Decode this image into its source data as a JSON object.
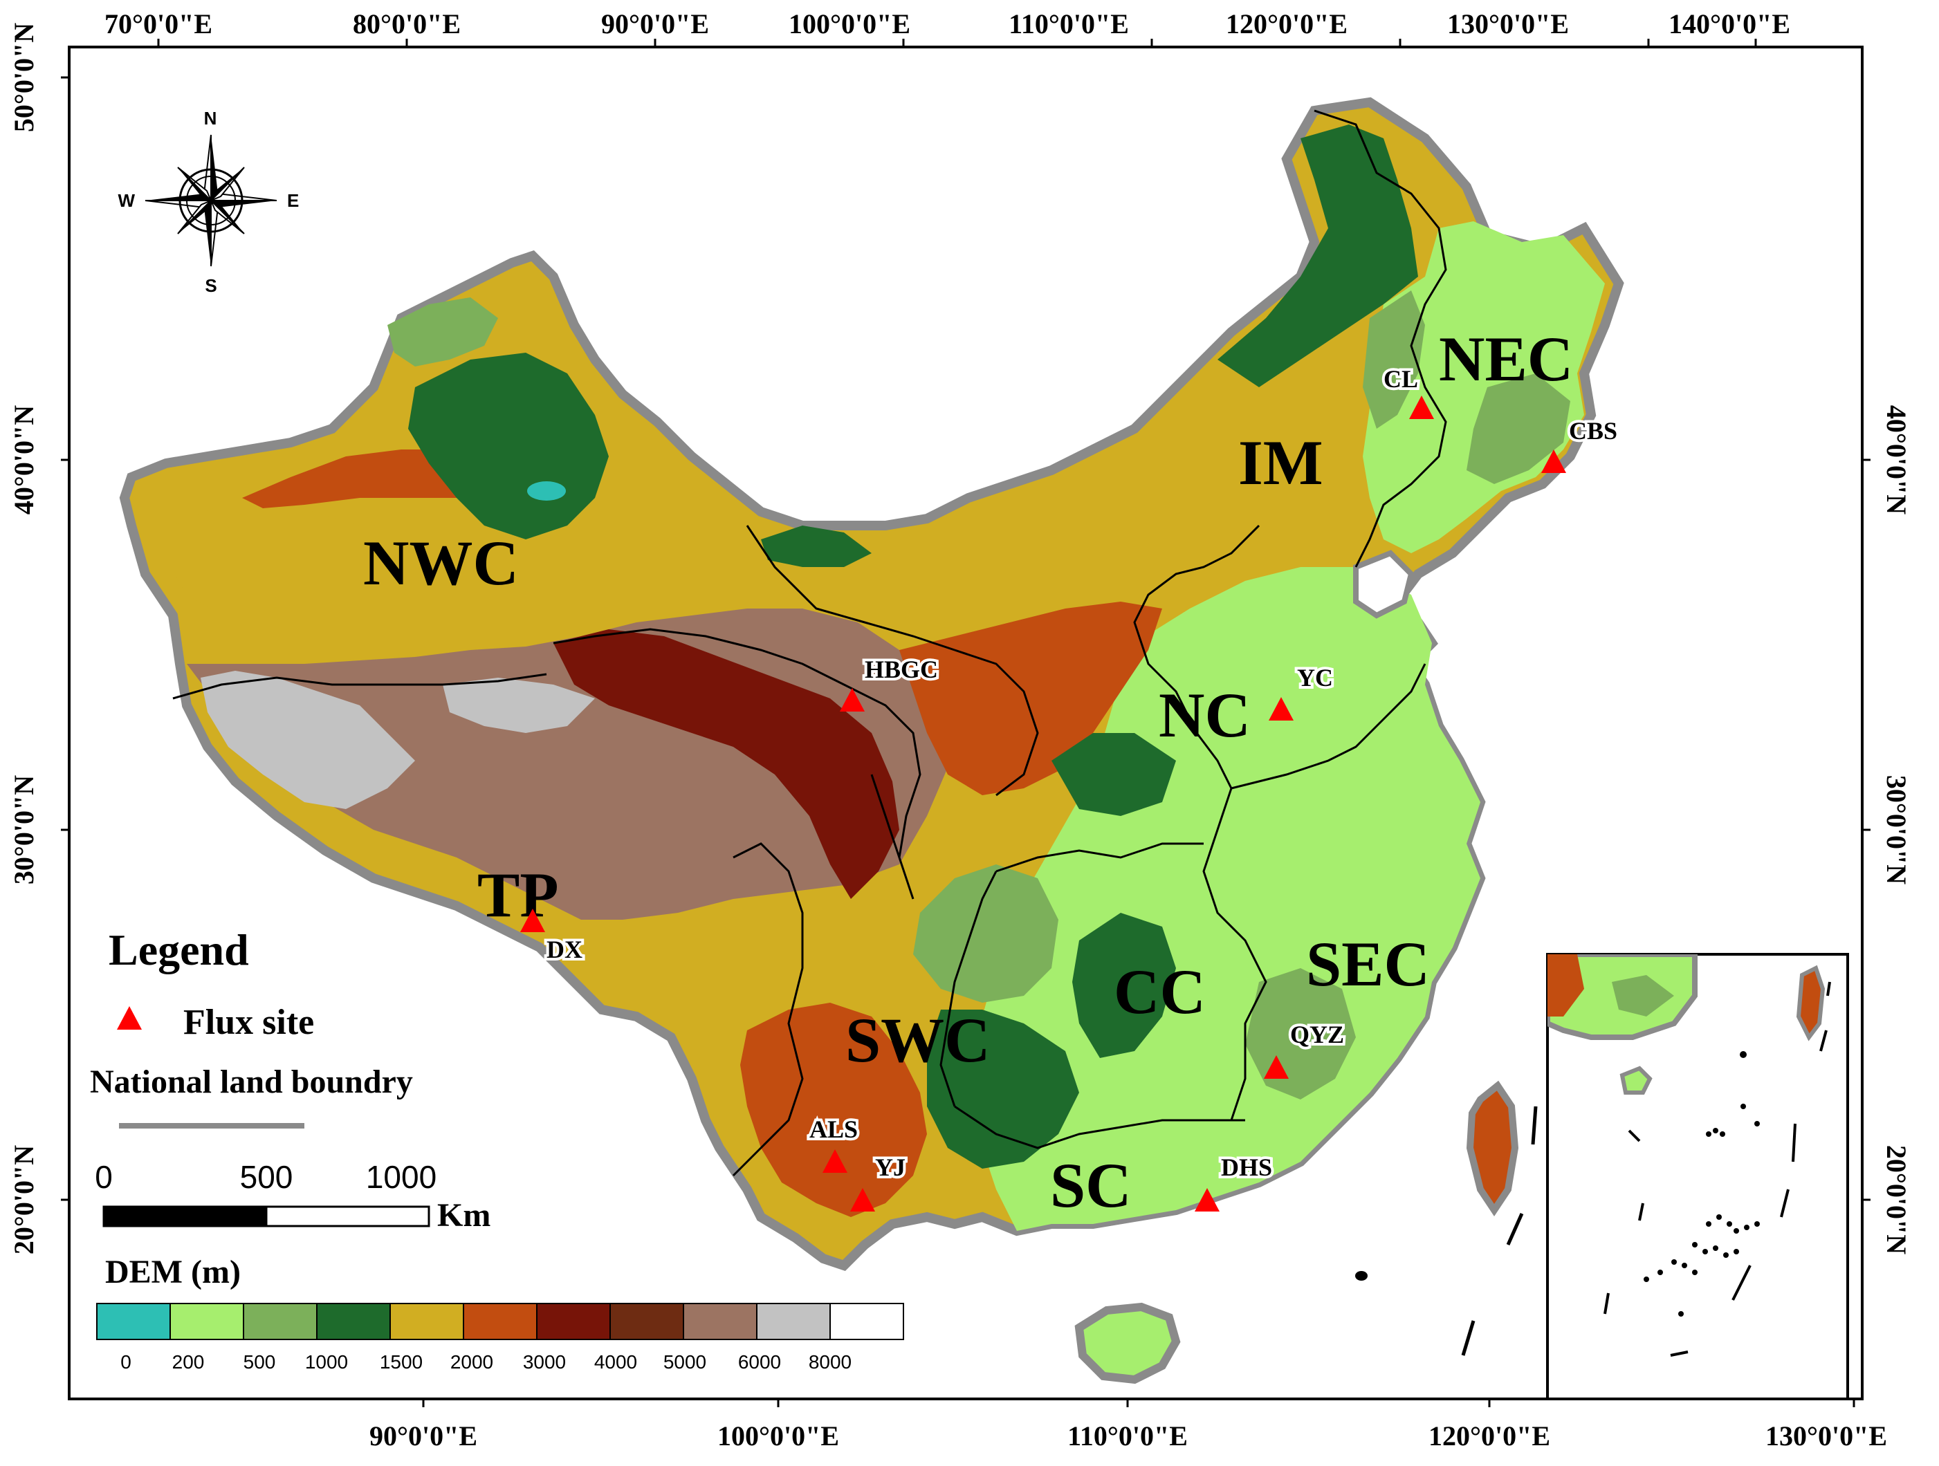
{
  "top_ticks": [
    "70°0'0\"E",
    "80°0'0\"E",
    "90°0'0\"E",
    "100°0'0\"E",
    "110°0'0\"E",
    "120°0'0\"E",
    "130°0'0\"E",
    "140°0'0\"E"
  ],
  "bottom_ticks": [
    "90°0'0\"E",
    "100°0'0\"E",
    "110°0'0\"E",
    "120°0'0\"E",
    "130°0'0\"E"
  ],
  "left_ticks": [
    "50°0'0\"N",
    "40°0'0\"N",
    "30°0'0\"N",
    "20°0'0\"N"
  ],
  "right_ticks": [
    "40°0'0\"N",
    "30°0'0\"N",
    "20°0'0\"N"
  ],
  "compass": {
    "n": "N",
    "s": "S",
    "e": "E",
    "w": "W"
  },
  "regions": [
    "NEC",
    "IM",
    "NWC",
    "NC",
    "TP",
    "CC",
    "SEC",
    "SWC",
    "SC"
  ],
  "sites": [
    "CL",
    "CBS",
    "HBGC",
    "YC",
    "DX",
    "QYZ",
    "ALS",
    "YJ",
    "DHS"
  ],
  "legend": {
    "title": "Legend",
    "flux_site": "Flux site",
    "boundary": "National land boundry",
    "scale_0": "0",
    "scale_500": "500",
    "scale_1000": "1000",
    "scale_unit": "Km",
    "dem_title": "DEM (m)",
    "dem_values": [
      "0",
      "200",
      "500",
      "1000",
      "1500",
      "2000",
      "3000",
      "4000",
      "5000",
      "6000",
      "8000"
    ],
    "dem_colors": [
      "#2dbfb4",
      "#a6ee6e",
      "#7cb05a",
      "#1e6b2c",
      "#d1ae22",
      "#c24d10",
      "#771408",
      "#6e2c12",
      "#9c7462",
      "#c2c2c2",
      "#ffffff"
    ]
  },
  "colors": {
    "site_marker": "#ff0000",
    "boundary": "#8a8a8a"
  }
}
